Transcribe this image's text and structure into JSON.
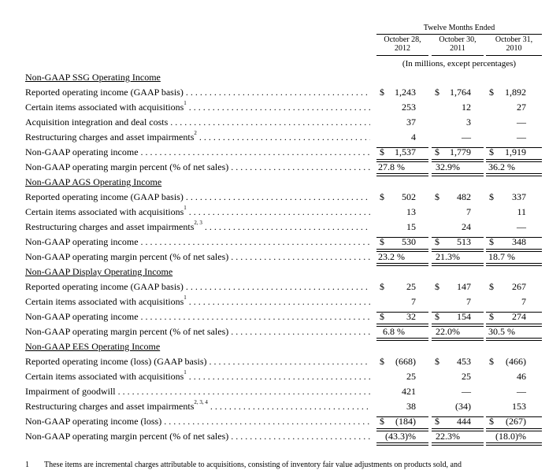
{
  "header": {
    "period_label": "Twelve Months Ended",
    "columns": [
      {
        "line1": "October 28,",
        "line2": "2012"
      },
      {
        "line1": "October 30,",
        "line2": "2011"
      },
      {
        "line1": "October 31,",
        "line2": "2010"
      }
    ],
    "units": "(In millions, except percentages)"
  },
  "sections": [
    {
      "title": "Non-GAAP SSG Operating Income",
      "rows": [
        {
          "label": "Reported operating income (GAAP basis)",
          "sup": "",
          "dollar": true,
          "values": [
            "1,243",
            "1,764",
            "1,892"
          ]
        },
        {
          "label": "Certain items associated with acquisitions",
          "sup": "1",
          "dollar": false,
          "values": [
            "253",
            "12",
            "27"
          ]
        },
        {
          "label": "Acquisition integration and deal costs",
          "sup": "",
          "dollar": false,
          "values": [
            "37",
            "3",
            "—"
          ]
        },
        {
          "label": "Restructuring charges and asset impairments",
          "sup": "2",
          "dollar": false,
          "values": [
            "4",
            "—",
            "—"
          ]
        },
        {
          "label": "Non-GAAP operating income",
          "sup": "",
          "dollar": true,
          "values": [
            "1,537",
            "1,779",
            "1,919"
          ]
        },
        {
          "label": "Non-GAAP operating margin percent (% of net sales)",
          "sup": "",
          "dollar": false,
          "values": [
            "27.8 %",
            "32.9%",
            "36.2 %"
          ]
        }
      ]
    },
    {
      "title": "Non-GAAP AGS Operating Income",
      "rows": [
        {
          "label": "Reported operating income (GAAP basis)",
          "sup": "",
          "dollar": true,
          "values": [
            "502",
            "482",
            "337"
          ]
        },
        {
          "label": "Certain items associated with acquisitions",
          "sup": "1",
          "dollar": false,
          "values": [
            "13",
            "7",
            "11"
          ]
        },
        {
          "label": "Restructuring charges and asset impairments",
          "sup": "2, 3",
          "dollar": false,
          "values": [
            "15",
            "24",
            "—"
          ]
        },
        {
          "label": "Non-GAAP operating income",
          "sup": "",
          "dollar": true,
          "values": [
            "530",
            "513",
            "348"
          ]
        },
        {
          "label": "Non-GAAP operating margin percent (% of net sales)",
          "sup": "",
          "dollar": false,
          "values": [
            "23.2 %",
            "21.3%",
            "18.7 %"
          ]
        }
      ]
    },
    {
      "title": "Non-GAAP Display Operating Income",
      "rows": [
        {
          "label": "Reported operating income (GAAP basis)",
          "sup": "",
          "dollar": true,
          "values": [
            "25",
            "147",
            "267"
          ]
        },
        {
          "label": "Certain items associated with acquisitions",
          "sup": "1",
          "dollar": false,
          "values": [
            "7",
            "7",
            "7"
          ]
        },
        {
          "label": "Non-GAAP operating income",
          "sup": "",
          "dollar": true,
          "values": [
            "32",
            "154",
            "274"
          ]
        },
        {
          "label": "Non-GAAP operating margin percent (% of net sales)",
          "sup": "",
          "dollar": false,
          "values": [
            "6.8 %",
            "22.0%",
            "30.5 %"
          ]
        }
      ]
    },
    {
      "title": "Non-GAAP EES Operating Income",
      "rows": [
        {
          "label": "Reported operating income (loss) (GAAP basis)",
          "sup": "",
          "dollar": true,
          "values": [
            "(668)",
            "453",
            "(466)"
          ]
        },
        {
          "label": "Certain items associated with acquisitions",
          "sup": "1",
          "dollar": false,
          "values": [
            "25",
            "25",
            "46"
          ]
        },
        {
          "label": "Impairment of goodwill",
          "sup": "",
          "dollar": false,
          "values": [
            "421",
            "—",
            "—"
          ]
        },
        {
          "label": "Restructuring charges and asset impairments",
          "sup": "2, 3, 4",
          "dollar": false,
          "values": [
            "38",
            "(34)",
            "153"
          ]
        },
        {
          "label": "Non-GAAP operating income (loss)",
          "sup": "",
          "dollar": true,
          "values": [
            "(184)",
            "444",
            "(267)"
          ]
        },
        {
          "label": "Non-GAAP operating margin percent (% of net sales)",
          "sup": "",
          "dollar": false,
          "values": [
            "(43.3)%",
            "22.3%",
            "(18.0)%"
          ]
        }
      ]
    }
  ],
  "footnote": {
    "number": "1",
    "text": "These items are incremental charges attributable to acquisitions, consisting of inventory fair value adjustments on products sold, and"
  }
}
